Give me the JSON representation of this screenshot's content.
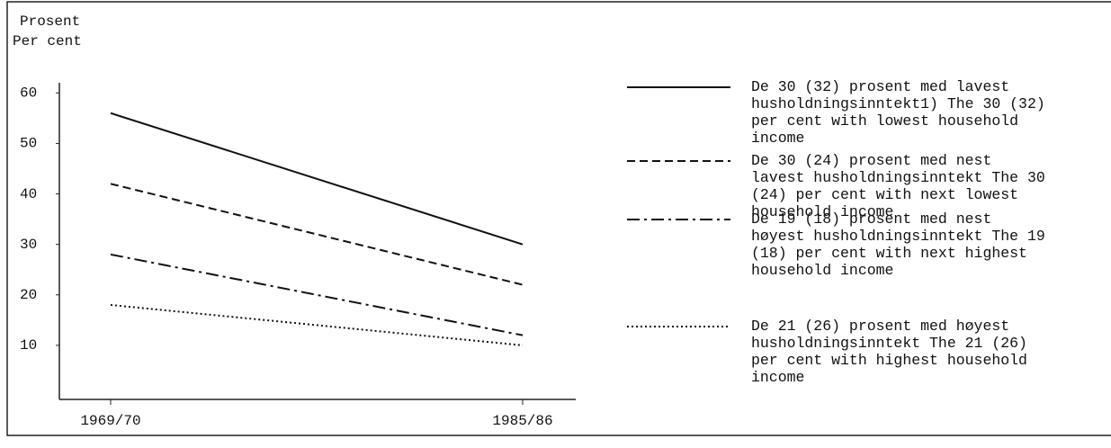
{
  "chart_data": {
    "type": "line",
    "y_label_lines": [
      "Prosent",
      "Per cent"
    ],
    "categories": [
      "1969/70",
      "1985/86"
    ],
    "series": [
      {
        "name": "De 30 (32) prosent med lavest husholdningsinntekt1) The 30 (32) per cent with lowest household income",
        "color": "#111111",
        "linestyle": "solid",
        "values": [
          56,
          30
        ]
      },
      {
        "name": "De 30 (24) prosent med nest lavest husholdningsinntekt The 30 (24) per cent with next lowest household income",
        "color": "#111111",
        "linestyle": "dashed",
        "values": [
          42,
          22
        ]
      },
      {
        "name": "De 19 (18) prosent med nest høyest husholdningsinntekt The 19 (18) per cent with next highest household income",
        "color": "#111111",
        "linestyle": "dashdot",
        "values": [
          28,
          12
        ]
      },
      {
        "name": "De 21 (26) prosent med høyest husholdningsinntekt The 21 (26) per cent with highest household income",
        "color": "#111111",
        "linestyle": "dotted",
        "values": [
          18,
          10
        ]
      }
    ],
    "ylim": [
      0,
      61
    ],
    "yticks": [
      10,
      20,
      30,
      40,
      50,
      60
    ]
  }
}
